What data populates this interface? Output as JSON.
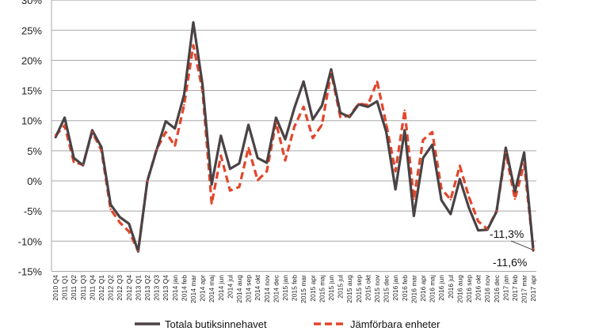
{
  "chart_data": {
    "type": "line",
    "title": "",
    "xlabel": "",
    "ylabel": "",
    "ylim": [
      -15,
      30
    ],
    "yticks": [
      "-15%",
      "-10%",
      "-5%",
      "0%",
      "5%",
      "10%",
      "15%",
      "20%",
      "25%",
      "30%"
    ],
    "ytick_values": [
      -15,
      -10,
      -5,
      0,
      5,
      10,
      15,
      20,
      25,
      30
    ],
    "grid": true,
    "legend_position": "bottom",
    "categories": [
      "2010 Q4",
      "2011 Q1",
      "2011 Q2",
      "2011 Q3",
      "2011 Q4",
      "2012 Q1",
      "2012 Q2",
      "2012 Q3",
      "2012 Q4",
      "2013 Q1",
      "2013 Q2",
      "2013 Q3",
      "2013 Q4",
      "2014 jan",
      "2014 feb",
      "2014 mar",
      "2014 apr",
      "2014 maj",
      "2014 jun",
      "2014 jul",
      "2014 aug",
      "2014 sep",
      "2014 okt",
      "2014 nov",
      "2014 dec",
      "2015 jan",
      "2015 feb",
      "2015 mar",
      "2015 apr",
      "2015 maj",
      "2015 jun",
      "2015 jul",
      "2015 aug",
      "2015 sep",
      "2015 okt",
      "2015 nov",
      "2015 dec",
      "2016 jan",
      "2016 feb",
      "2016 mar",
      "2016 apr",
      "2016 maj",
      "2016 jun",
      "2016 jul",
      "2016 aug",
      "2016 sep",
      "2016 okt",
      "2016 nov",
      "2016 dec",
      "2017 jan",
      "2017 feb",
      "2017 mar",
      "2017 apr"
    ],
    "series": [
      {
        "name": "Totala butiksinnehavet",
        "color": "#4a4245",
        "style": "solid",
        "values": [
          7.2,
          10.5,
          3.8,
          2.6,
          8.4,
          5.6,
          -3.9,
          -6.0,
          -7.1,
          -11.7,
          0.0,
          5.1,
          9.9,
          8.7,
          14.3,
          26.3,
          16.0,
          -0.6,
          7.5,
          2.0,
          2.9,
          9.3,
          3.8,
          3.0,
          10.5,
          6.9,
          12.1,
          16.5,
          10.2,
          12.5,
          18.5,
          11.3,
          10.6,
          12.7,
          12.3,
          13.2,
          8.1,
          -1.4,
          8.4,
          -5.8,
          3.8,
          6.0,
          -3.2,
          -5.5,
          0.3,
          -4.5,
          -8.2,
          -8.1,
          -5.1,
          5.5,
          -1.8,
          4.7,
          -11.6
        ]
      },
      {
        "name": "Jämförbara enheter",
        "color": "#e2462b",
        "style": "dashed",
        "values": [
          7.5,
          9.2,
          3.1,
          2.7,
          8.1,
          5.1,
          -4.7,
          -6.9,
          -8.4,
          -11.6,
          0.0,
          5.2,
          8.1,
          5.8,
          12.6,
          22.5,
          15.0,
          -3.8,
          4.2,
          -1.6,
          -1.0,
          5.5,
          0.1,
          1.6,
          9.7,
          3.4,
          9.0,
          12.3,
          7.1,
          9.3,
          18.0,
          10.6,
          10.8,
          12.8,
          12.6,
          16.5,
          9.4,
          1.6,
          11.7,
          -3.0,
          6.8,
          8.1,
          -1.3,
          -3.1,
          2.5,
          -2.7,
          -6.7,
          -8.0,
          -5.0,
          4.7,
          -3.0,
          2.8,
          -11.3
        ]
      }
    ],
    "annotations": [
      "-11,3%",
      "-11,6%"
    ]
  }
}
